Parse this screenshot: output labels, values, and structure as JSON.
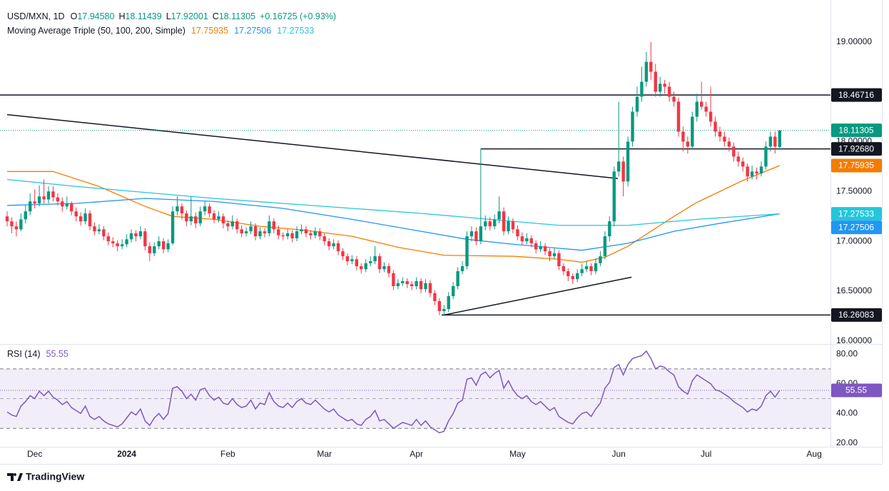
{
  "chart_data": {
    "type": "candlestick",
    "header": {
      "symbol": "USD/MXN, 1D",
      "ohlc": [
        {
          "key": "O",
          "text": "17.94580"
        },
        {
          "key": "H",
          "text": "18.11439"
        },
        {
          "key": "L",
          "text": "17.92001"
        },
        {
          "key": "C",
          "text": "18.11305"
        }
      ],
      "change": "+0.16725 (+0.93%)",
      "ma_title": "Moving Average Triple (50, 100, 200, Simple)"
    },
    "up_color": "#089981",
    "down_color": "#f23645",
    "xlim": [
      0,
      177.5
    ],
    "ylim": [
      15.97,
      19.42
    ],
    "grid": false,
    "yticks": [
      {
        "value": 16,
        "label": "16.00000"
      },
      {
        "value": 16.5,
        "label": "16.50000"
      },
      {
        "value": 17,
        "label": "17.00000"
      },
      {
        "value": 17.5,
        "label": "17.50000"
      },
      {
        "value": 18,
        "label": "18.00000"
      },
      {
        "value": 19,
        "label": "19.00000"
      }
    ],
    "xticks": [
      {
        "value": 6,
        "label": "Dec"
      },
      {
        "value": 26,
        "label": "2024"
      },
      {
        "value": 48,
        "label": "Feb"
      },
      {
        "value": 69,
        "label": "Mar"
      },
      {
        "value": 89,
        "label": "Apr"
      },
      {
        "value": 111,
        "label": "May"
      },
      {
        "value": 133,
        "label": "Jun"
      },
      {
        "value": 152,
        "label": "Jul"
      },
      {
        "value": 175.5,
        "label": "Aug"
      }
    ],
    "ohlc": [
      [
        17.25,
        17.3,
        17.15,
        17.2
      ],
      [
        17.2,
        17.24,
        17.08,
        17.15
      ],
      [
        17.15,
        17.2,
        17.05,
        17.12
      ],
      [
        17.12,
        17.28,
        17.1,
        17.22
      ],
      [
        17.22,
        17.36,
        17.18,
        17.3
      ],
      [
        17.3,
        17.48,
        17.26,
        17.4
      ],
      [
        17.4,
        17.52,
        17.33,
        17.38
      ],
      [
        17.38,
        17.56,
        17.35,
        17.45
      ],
      [
        17.45,
        17.62,
        17.38,
        17.42
      ],
      [
        17.42,
        17.55,
        17.38,
        17.5
      ],
      [
        17.5,
        17.55,
        17.4,
        17.44
      ],
      [
        17.44,
        17.48,
        17.36,
        17.4
      ],
      [
        17.4,
        17.44,
        17.3,
        17.35
      ],
      [
        17.35,
        17.45,
        17.32,
        17.38
      ],
      [
        17.38,
        17.4,
        17.26,
        17.3
      ],
      [
        17.3,
        17.34,
        17.2,
        17.25
      ],
      [
        17.25,
        17.29,
        17.16,
        17.2
      ],
      [
        17.2,
        17.33,
        17.17,
        17.28
      ],
      [
        17.28,
        17.31,
        17.11,
        17.15
      ],
      [
        17.15,
        17.19,
        17.06,
        17.1
      ],
      [
        17.1,
        17.17,
        17.07,
        17.12
      ],
      [
        17.12,
        17.15,
        17.01,
        17.05
      ],
      [
        17.05,
        17.09,
        16.96,
        17.0
      ],
      [
        17.0,
        17.04,
        16.94,
        16.98
      ],
      [
        16.98,
        17.01,
        16.9,
        16.95
      ],
      [
        16.95,
        17.02,
        16.92,
        16.97
      ],
      [
        16.97,
        17.07,
        16.94,
        17.02
      ],
      [
        17.02,
        17.12,
        16.99,
        17.08
      ],
      [
        17.08,
        17.11,
        17.0,
        17.05
      ],
      [
        17.05,
        17.15,
        17.02,
        17.1
      ],
      [
        17.1,
        17.13,
        16.91,
        16.95
      ],
      [
        16.95,
        16.99,
        16.8,
        16.88
      ],
      [
        16.88,
        16.99,
        16.85,
        16.95
      ],
      [
        16.95,
        17.05,
        16.92,
        17.0
      ],
      [
        17.0,
        17.03,
        16.88,
        16.92
      ],
      [
        16.92,
        17.02,
        16.89,
        16.98
      ],
      [
        16.98,
        17.35,
        16.96,
        17.3
      ],
      [
        17.3,
        17.45,
        17.26,
        17.35
      ],
      [
        17.35,
        17.38,
        17.22,
        17.28
      ],
      [
        17.28,
        17.31,
        17.15,
        17.2
      ],
      [
        17.2,
        17.45,
        17.16,
        17.25
      ],
      [
        17.25,
        17.29,
        17.13,
        17.18
      ],
      [
        17.18,
        17.35,
        17.15,
        17.3
      ],
      [
        17.3,
        17.4,
        17.26,
        17.35
      ],
      [
        17.35,
        17.38,
        17.24,
        17.28
      ],
      [
        17.28,
        17.31,
        17.18,
        17.22
      ],
      [
        17.22,
        17.3,
        17.19,
        17.25
      ],
      [
        17.25,
        17.28,
        17.13,
        17.18
      ],
      [
        17.18,
        17.21,
        17.1,
        17.15
      ],
      [
        17.15,
        17.26,
        17.12,
        17.2
      ],
      [
        17.2,
        17.23,
        17.08,
        17.12
      ],
      [
        17.12,
        17.16,
        17.04,
        17.08
      ],
      [
        17.08,
        17.14,
        17.05,
        17.1
      ],
      [
        17.1,
        17.2,
        17.07,
        17.15
      ],
      [
        17.15,
        17.18,
        17.01,
        17.05
      ],
      [
        17.05,
        17.14,
        17.02,
        17.1
      ],
      [
        17.1,
        17.13,
        17.04,
        17.08
      ],
      [
        17.08,
        17.26,
        17.05,
        17.2
      ],
      [
        17.2,
        17.23,
        17.08,
        17.12
      ],
      [
        17.12,
        17.16,
        17.02,
        17.06
      ],
      [
        17.06,
        17.09,
        17.01,
        17.05
      ],
      [
        17.05,
        17.12,
        17.02,
        17.08
      ],
      [
        17.08,
        17.11,
        16.99,
        17.03
      ],
      [
        17.03,
        17.15,
        17.0,
        17.1
      ],
      [
        17.1,
        17.17,
        17.07,
        17.12
      ],
      [
        17.12,
        17.15,
        17.04,
        17.08
      ],
      [
        17.08,
        17.11,
        17.02,
        17.06
      ],
      [
        17.06,
        17.14,
        17.03,
        17.1
      ],
      [
        17.1,
        17.13,
        17.01,
        17.05
      ],
      [
        17.05,
        17.08,
        16.96,
        17.0
      ],
      [
        17.0,
        17.03,
        16.91,
        16.95
      ],
      [
        16.95,
        17.02,
        16.92,
        16.98
      ],
      [
        16.98,
        17.01,
        16.86,
        16.9
      ],
      [
        16.9,
        16.93,
        16.81,
        16.85
      ],
      [
        16.85,
        16.88,
        16.76,
        16.8
      ],
      [
        16.8,
        16.86,
        16.77,
        16.82
      ],
      [
        16.82,
        16.85,
        16.71,
        16.75
      ],
      [
        16.75,
        16.78,
        16.68,
        16.72
      ],
      [
        16.72,
        16.82,
        16.69,
        16.78
      ],
      [
        16.78,
        16.85,
        16.75,
        16.8
      ],
      [
        16.8,
        16.95,
        16.77,
        16.85
      ],
      [
        16.85,
        16.88,
        16.68,
        16.72
      ],
      [
        16.72,
        16.79,
        16.69,
        16.75
      ],
      [
        16.75,
        16.78,
        16.64,
        16.68
      ],
      [
        16.68,
        16.71,
        16.51,
        16.55
      ],
      [
        16.55,
        16.62,
        16.52,
        16.58
      ],
      [
        16.58,
        16.64,
        16.55,
        16.6
      ],
      [
        16.6,
        16.63,
        16.53,
        16.57
      ],
      [
        16.57,
        16.6,
        16.51,
        16.55
      ],
      [
        16.55,
        16.64,
        16.52,
        16.6
      ],
      [
        16.6,
        16.63,
        16.48,
        16.52
      ],
      [
        16.52,
        16.62,
        16.49,
        16.58
      ],
      [
        16.58,
        16.61,
        16.44,
        16.48
      ],
      [
        16.48,
        16.51,
        16.36,
        16.4
      ],
      [
        16.4,
        16.43,
        16.26,
        16.3
      ],
      [
        16.3,
        16.36,
        16.27,
        16.32
      ],
      [
        16.32,
        16.49,
        16.29,
        16.45
      ],
      [
        16.45,
        16.59,
        16.42,
        16.55
      ],
      [
        16.55,
        16.74,
        16.52,
        16.7
      ],
      [
        16.7,
        16.8,
        16.67,
        16.75
      ],
      [
        16.75,
        17.1,
        16.72,
        17.05
      ],
      [
        17.05,
        17.15,
        17.0,
        17.1
      ],
      [
        17.1,
        17.14,
        16.96,
        17.0
      ],
      [
        17.0,
        17.93,
        16.97,
        17.15
      ],
      [
        17.15,
        17.26,
        17.11,
        17.2
      ],
      [
        17.2,
        17.24,
        17.11,
        17.15
      ],
      [
        17.15,
        17.27,
        17.12,
        17.22
      ],
      [
        17.22,
        17.45,
        17.18,
        17.3
      ],
      [
        17.3,
        17.34,
        17.06,
        17.1
      ],
      [
        17.1,
        17.25,
        17.07,
        17.2
      ],
      [
        17.2,
        17.23,
        17.08,
        17.12
      ],
      [
        17.12,
        17.16,
        17.01,
        17.05
      ],
      [
        17.05,
        17.09,
        16.96,
        17.0
      ],
      [
        17.0,
        17.08,
        16.97,
        17.03
      ],
      [
        17.03,
        17.06,
        16.94,
        16.98
      ],
      [
        16.98,
        17.01,
        16.88,
        16.92
      ],
      [
        16.92,
        17.0,
        16.89,
        16.95
      ],
      [
        16.95,
        16.98,
        16.86,
        16.9
      ],
      [
        16.9,
        16.93,
        16.8,
        16.85
      ],
      [
        16.85,
        16.93,
        16.82,
        16.88
      ],
      [
        16.88,
        16.91,
        16.71,
        16.75
      ],
      [
        16.75,
        16.78,
        16.66,
        16.7
      ],
      [
        16.7,
        16.73,
        16.6,
        16.65
      ],
      [
        16.65,
        16.68,
        16.57,
        16.62
      ],
      [
        16.62,
        16.72,
        16.59,
        16.68
      ],
      [
        16.68,
        16.77,
        16.65,
        16.72
      ],
      [
        16.72,
        16.8,
        16.69,
        16.75
      ],
      [
        16.75,
        16.78,
        16.66,
        16.7
      ],
      [
        16.7,
        16.83,
        16.67,
        16.78
      ],
      [
        16.78,
        16.9,
        16.75,
        16.85
      ],
      [
        16.85,
        17.1,
        16.82,
        17.05
      ],
      [
        17.05,
        17.25,
        17.0,
        17.2
      ],
      [
        17.2,
        17.75,
        17.15,
        17.7
      ],
      [
        17.7,
        18.4,
        17.65,
        17.8
      ],
      [
        17.8,
        17.85,
        17.45,
        17.6
      ],
      [
        17.6,
        18.05,
        17.55,
        18.0
      ],
      [
        18.0,
        18.35,
        17.95,
        18.3
      ],
      [
        18.3,
        18.55,
        18.25,
        18.45
      ],
      [
        18.45,
        18.75,
        18.4,
        18.6
      ],
      [
        18.6,
        18.9,
        18.55,
        18.8
      ],
      [
        18.8,
        19.0,
        18.62,
        18.7
      ],
      [
        18.7,
        18.78,
        18.45,
        18.5
      ],
      [
        18.5,
        18.65,
        18.45,
        18.58
      ],
      [
        18.58,
        18.62,
        18.48,
        18.55
      ],
      [
        18.55,
        18.6,
        18.4,
        18.45
      ],
      [
        18.45,
        18.5,
        18.35,
        18.4
      ],
      [
        18.4,
        18.44,
        18.05,
        18.1
      ],
      [
        18.1,
        18.15,
        17.9,
        18.0
      ],
      [
        18.0,
        18.05,
        17.88,
        17.95
      ],
      [
        17.95,
        18.3,
        17.92,
        18.25
      ],
      [
        18.25,
        18.48,
        18.2,
        18.4
      ],
      [
        18.4,
        18.6,
        18.32,
        18.35
      ],
      [
        18.35,
        18.4,
        18.25,
        18.3
      ],
      [
        18.3,
        18.55,
        18.15,
        18.2
      ],
      [
        18.2,
        18.25,
        18.05,
        18.1
      ],
      [
        18.1,
        18.15,
        18.0,
        18.05
      ],
      [
        18.05,
        18.1,
        17.95,
        18.0
      ],
      [
        18.0,
        18.04,
        17.9,
        17.95
      ],
      [
        17.95,
        17.99,
        17.8,
        17.85
      ],
      [
        17.85,
        17.9,
        17.75,
        17.8
      ],
      [
        17.8,
        17.84,
        17.7,
        17.75
      ],
      [
        17.75,
        17.78,
        17.6,
        17.65
      ],
      [
        17.65,
        17.76,
        17.62,
        17.7
      ],
      [
        17.7,
        17.74,
        17.62,
        17.68
      ],
      [
        17.68,
        17.8,
        17.65,
        17.75
      ],
      [
        17.75,
        18.0,
        17.72,
        17.95
      ],
      [
        17.95,
        18.1,
        17.9,
        18.05
      ],
      [
        18.05,
        18.1,
        17.88,
        17.95
      ],
      [
        17.9458,
        18.11439,
        17.92001,
        18.11305
      ]
    ],
    "moving_averages": [
      {
        "color": "#f57c00",
        "x": [
          0,
          10,
          20,
          30,
          36,
          45,
          55,
          65,
          75,
          85,
          95,
          110,
          120,
          125,
          130,
          135,
          145,
          150,
          155,
          160,
          168
        ],
        "values": [
          17.7,
          17.7,
          17.55,
          17.35,
          17.25,
          17.22,
          17.15,
          17.11,
          17.05,
          16.94,
          16.86,
          16.85,
          16.82,
          16.79,
          16.84,
          16.95,
          17.25,
          17.39,
          17.5,
          17.61,
          17.75935
        ]
      },
      {
        "color": "#2196f3",
        "x": [
          0,
          15,
          30,
          45,
          60,
          75,
          90,
          100,
          110,
          125,
          135,
          145,
          155,
          168
        ],
        "values": [
          17.36,
          17.38,
          17.43,
          17.4,
          17.33,
          17.22,
          17.1,
          17.02,
          16.97,
          16.91,
          16.98,
          17.1,
          17.18,
          17.27506
        ]
      },
      {
        "color": "#26c6da",
        "x": [
          0,
          15,
          30,
          45,
          60,
          75,
          90,
          105,
          120,
          135,
          150,
          168
        ],
        "values": [
          17.62,
          17.55,
          17.49,
          17.43,
          17.38,
          17.33,
          17.28,
          17.22,
          17.16,
          17.16,
          17.22,
          17.27533
        ]
      }
    ],
    "levels": [
      {
        "value": 18.46716,
        "from": 0
      },
      {
        "value": 17.9268,
        "label": "17.92680",
        "from": 103
      },
      {
        "value": 16.26083,
        "from": 94.5
      }
    ],
    "level_color": "#131722",
    "trendlines": [
      {
        "x": [
          0,
          132.8
        ],
        "y": [
          18.27,
          17.63
        ]
      },
      {
        "x": [
          94.9,
          135.8
        ],
        "y": [
          16.26,
          16.64
        ]
      }
    ],
    "rsi": {
      "title": "RSI (14)",
      "color": "#7e57c2",
      "ylim": [
        17.6,
        86.3
      ],
      "bands": [
        30,
        70
      ],
      "midline": 50,
      "yticks": [
        {
          "value": 20,
          "label": "20.00"
        },
        {
          "value": 40,
          "label": "40.00"
        },
        {
          "value": 60,
          "label": "60.00"
        },
        {
          "value": 80,
          "label": "80.00"
        }
      ],
      "values": [
        41,
        39,
        38,
        45,
        48,
        52,
        50,
        55,
        52,
        55,
        51,
        49,
        46,
        48,
        44,
        42,
        40,
        45,
        38,
        36,
        38,
        35,
        33,
        32,
        31,
        33,
        37,
        41,
        39,
        43,
        35,
        32,
        37,
        40,
        36,
        40,
        57,
        58,
        55,
        50,
        53,
        49,
        56,
        57,
        52,
        49,
        51,
        47,
        46,
        50,
        46,
        44,
        45,
        49,
        43,
        47,
        46,
        54,
        48,
        45,
        44,
        47,
        44,
        48,
        50,
        47,
        46,
        49,
        46,
        43,
        41,
        43,
        39,
        37,
        35,
        36,
        33,
        32,
        36,
        38,
        42,
        35,
        36,
        33,
        30,
        32,
        34,
        33,
        32,
        36,
        32,
        35,
        31,
        29,
        27,
        28,
        35,
        40,
        47,
        49,
        63,
        64,
        59,
        66,
        68,
        64,
        67,
        69,
        57,
        62,
        56,
        52,
        50,
        52,
        48,
        46,
        48,
        45,
        42,
        44,
        38,
        36,
        34,
        33,
        37,
        40,
        41,
        38,
        43,
        47,
        57,
        61,
        71,
        73,
        66,
        73,
        77,
        78,
        79,
        82,
        77,
        70,
        72,
        71,
        68,
        66,
        58,
        55,
        53,
        62,
        66,
        64,
        62,
        60,
        56,
        55,
        53,
        51,
        48,
        46,
        44,
        41,
        43,
        42,
        45,
        52,
        55,
        51,
        55.55
      ]
    },
    "footer": {
      "brand": "TradingView"
    }
  }
}
